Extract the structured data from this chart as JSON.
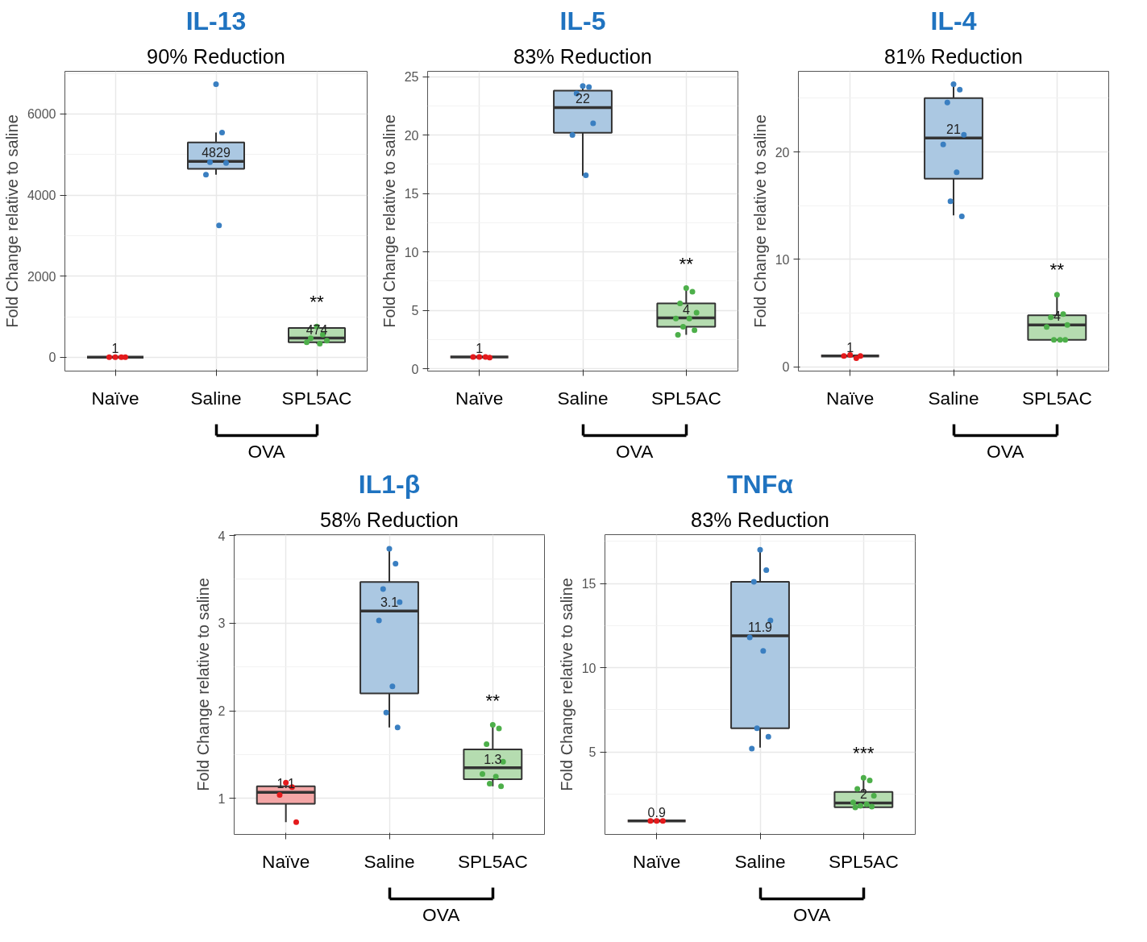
{
  "chart_data": [
    {
      "type": "box",
      "title": "IL-13",
      "subtitle": "90% Reduction",
      "ylabel": "Fold Change relative to saline",
      "categories": [
        "Naïve",
        "Saline",
        "SPL5AC"
      ],
      "ylim": [
        -340,
        7050
      ],
      "yticks": [
        0,
        2000,
        4000,
        6000
      ],
      "grid": true,
      "colors": [
        "#f4a6a6",
        "#abc8e2",
        "#b5dcb0"
      ],
      "boxes": [
        {
          "low": 1,
          "q1": 1,
          "median": 1,
          "q3": 1,
          "high": 1
        },
        {
          "low": 4500,
          "q1": 4645,
          "median": 4829,
          "q3": 5295,
          "high": 5540
        },
        {
          "low": 335,
          "q1": 372,
          "median": 474,
          "q3": 725,
          "high": 760
        }
      ],
      "series": [
        {
          "type": "scatter",
          "color": "#e41a1c",
          "x": [
            "Naïve",
            "Naïve",
            "Naïve",
            "Naïve"
          ],
          "values": [
            1,
            1,
            1,
            1
          ]
        },
        {
          "type": "scatter",
          "color": "#3a7fc1",
          "x": [
            "Saline",
            "Saline",
            "Saline",
            "Saline",
            "Saline",
            "Saline"
          ],
          "values": [
            6730,
            5540,
            4810,
            4790,
            4500,
            3250
          ]
        },
        {
          "type": "scatter",
          "color": "#4daf4a",
          "x": [
            "SPL5AC",
            "SPL5AC",
            "SPL5AC",
            "SPL5AC",
            "SPL5AC",
            "SPL5AC"
          ],
          "values": [
            760,
            560,
            470,
            410,
            370,
            335
          ]
        }
      ],
      "annotations": [
        {
          "text": "1",
          "x": "Naïve",
          "y": 1
        },
        {
          "text": "4829",
          "x": "Saline",
          "y": 4829
        },
        {
          "text": "474",
          "x": "SPL5AC",
          "y": 474
        },
        {
          "text": "**",
          "x": "SPL5AC",
          "y": 760
        },
        "OVA"
      ]
    },
    {
      "type": "box",
      "title": "IL-5",
      "subtitle": "83% Reduction",
      "ylabel": "Fold Change relative to saline",
      "categories": [
        "Naïve",
        "Saline",
        "SPL5AC"
      ],
      "ylim": [
        -0.2,
        25.45
      ],
      "yticks": [
        0,
        5,
        10,
        15,
        20,
        25
      ],
      "grid": true,
      "colors": [
        "#f4a6a6",
        "#abc8e2",
        "#b5dcb0"
      ],
      "boxes": [
        {
          "low": 1,
          "q1": 1,
          "median": 1,
          "q3": 1,
          "high": 1
        },
        {
          "low": 16.5,
          "q1": 20.2,
          "median": 22.35,
          "q3": 23.8,
          "high": 24.2
        },
        {
          "low": 2.9,
          "q1": 3.6,
          "median": 4.35,
          "q3": 5.6,
          "high": 6.9
        }
      ],
      "series": [
        {
          "type": "scatter",
          "color": "#e41a1c",
          "x": [
            "Naïve",
            "Naïve",
            "Naïve",
            "Naïve"
          ],
          "values": [
            1,
            1,
            1,
            0.95
          ]
        },
        {
          "type": "scatter",
          "color": "#3a7fc1",
          "x": [
            "Saline",
            "Saline",
            "Saline",
            "Saline",
            "Saline",
            "Saline"
          ],
          "values": [
            24.2,
            24.1,
            23.55,
            21,
            20,
            16.55
          ]
        },
        {
          "type": "scatter",
          "color": "#4daf4a",
          "x": [
            "SPL5AC",
            "SPL5AC",
            "SPL5AC",
            "SPL5AC",
            "SPL5AC",
            "SPL5AC",
            "SPL5AC",
            "SPL5AC",
            "SPL5AC"
          ],
          "values": [
            6.9,
            6.6,
            5.6,
            4.8,
            4.3,
            4.3,
            3.6,
            3.3,
            2.9
          ]
        }
      ],
      "annotations": [
        {
          "text": "1",
          "x": "Naïve",
          "y": 1
        },
        {
          "text": "22",
          "x": "Saline",
          "y": 22.35
        },
        {
          "text": "4",
          "x": "SPL5AC",
          "y": 4.35
        },
        {
          "text": "**",
          "x": "SPL5AC",
          "y": 6.9
        },
        "OVA"
      ]
    },
    {
      "type": "box",
      "title": "IL-4",
      "subtitle": "81% Reduction",
      "ylabel": "Fold Change relative to saline",
      "categories": [
        "Naïve",
        "Saline",
        "SPL5AC"
      ],
      "ylim": [
        -0.4,
        27.5
      ],
      "yticks": [
        0,
        10,
        20
      ],
      "grid": true,
      "colors": [
        "#f4a6a6",
        "#abc8e2",
        "#b5dcb0"
      ],
      "boxes": [
        {
          "low": 1,
          "q1": 1,
          "median": 1,
          "q3": 1,
          "high": 1
        },
        {
          "low": 14.1,
          "q1": 17.5,
          "median": 21.3,
          "q3": 25,
          "high": 26.3
        },
        {
          "low": 2.5,
          "q1": 2.5,
          "median": 3.9,
          "q3": 4.8,
          "high": 6.8
        }
      ],
      "series": [
        {
          "type": "scatter",
          "color": "#e41a1c",
          "x": [
            "Naïve",
            "Naïve",
            "Naïve",
            "Naïve"
          ],
          "values": [
            1.1,
            0.8,
            1,
            1
          ]
        },
        {
          "type": "scatter",
          "color": "#3a7fc1",
          "x": [
            "Saline",
            "Saline",
            "Saline",
            "Saline",
            "Saline",
            "Saline",
            "Saline",
            "Saline"
          ],
          "values": [
            26.3,
            25.8,
            24.6,
            21.6,
            20.7,
            18.1,
            15.4,
            14
          ]
        },
        {
          "type": "scatter",
          "color": "#4daf4a",
          "x": [
            "SPL5AC",
            "SPL5AC",
            "SPL5AC",
            "SPL5AC",
            "SPL5AC",
            "SPL5AC",
            "SPL5AC",
            "SPL5AC"
          ],
          "values": [
            6.7,
            4.9,
            4.6,
            3.9,
            3.7,
            2.5,
            2.5,
            2.5
          ]
        }
      ],
      "annotations": [
        {
          "text": "1",
          "x": "Naïve",
          "y": 1
        },
        {
          "text": "21",
          "x": "Saline",
          "y": 21.3
        },
        {
          "text": "4",
          "x": "SPL5AC",
          "y": 3.9
        },
        {
          "text": "**",
          "x": "SPL5AC",
          "y": 6.8
        },
        "OVA"
      ]
    },
    {
      "type": "box",
      "title": "IL1-β",
      "subtitle": "58% Reduction",
      "ylabel": "Fold Change relative to saline",
      "categories": [
        "Naïve",
        "Saline",
        "SPL5AC"
      ],
      "ylim": [
        0.59,
        4.01
      ],
      "yticks": [
        1,
        2,
        3,
        4
      ],
      "grid": true,
      "colors": [
        "#f4a6a6",
        "#abc8e2",
        "#b5dcb0"
      ],
      "boxes": [
        {
          "low": 0.73,
          "q1": 0.94,
          "median": 1.07,
          "q3": 1.14,
          "high": 1.18
        },
        {
          "low": 1.81,
          "q1": 2.2,
          "median": 3.14,
          "q3": 3.47,
          "high": 3.85
        },
        {
          "low": 1.14,
          "q1": 1.22,
          "median": 1.35,
          "q3": 1.56,
          "high": 1.84
        }
      ],
      "series": [
        {
          "type": "scatter",
          "color": "#e41a1c",
          "x": [
            "Naïve",
            "Naïve",
            "Naïve",
            "Naïve"
          ],
          "values": [
            1.18,
            1.13,
            1.04,
            0.73
          ]
        },
        {
          "type": "scatter",
          "color": "#3a7fc1",
          "x": [
            "Saline",
            "Saline",
            "Saline",
            "Saline",
            "Saline",
            "Saline",
            "Saline",
            "Saline"
          ],
          "values": [
            3.85,
            3.68,
            3.39,
            3.24,
            3.03,
            2.28,
            1.98,
            1.81
          ]
        },
        {
          "type": "scatter",
          "color": "#4daf4a",
          "x": [
            "SPL5AC",
            "SPL5AC",
            "SPL5AC",
            "SPL5AC",
            "SPL5AC",
            "SPL5AC",
            "SPL5AC",
            "SPL5AC"
          ],
          "values": [
            1.84,
            1.8,
            1.62,
            1.42,
            1.28,
            1.25,
            1.17,
            1.14
          ]
        }
      ],
      "annotations": [
        {
          "text": "1.1",
          "x": "Naïve",
          "y": 1.07
        },
        {
          "text": "3.1",
          "x": "Saline",
          "y": 3.14
        },
        {
          "text": "1.3",
          "x": "SPL5AC",
          "y": 1.35
        },
        {
          "text": "**",
          "x": "SPL5AC",
          "y": 1.84
        },
        "OVA"
      ]
    },
    {
      "type": "box",
      "title": "TNFα",
      "subtitle": "83% Reduction",
      "ylabel": "Fold Change relative to saline",
      "categories": [
        "Naïve",
        "Saline",
        "SPL5AC"
      ],
      "ylim": [
        0.1,
        17.9
      ],
      "yticks": [
        5,
        10,
        15
      ],
      "grid": true,
      "colors": [
        "#f4a6a6",
        "#abc8e2",
        "#b5dcb0"
      ],
      "boxes": [
        {
          "low": 0.9,
          "q1": 0.9,
          "median": 0.9,
          "q3": 0.9,
          "high": 0.9
        },
        {
          "low": 5.25,
          "q1": 6.4,
          "median": 11.9,
          "q3": 15.1,
          "high": 17.05
        },
        {
          "low": 1.7,
          "q1": 1.71,
          "median": 1.97,
          "q3": 2.63,
          "high": 3.46
        }
      ],
      "series": [
        {
          "type": "scatter",
          "color": "#e41a1c",
          "x": [
            "Naïve",
            "Naïve",
            "Naïve"
          ],
          "values": [
            0.9,
            0.9,
            0.9
          ]
        },
        {
          "type": "scatter",
          "color": "#3a7fc1",
          "x": [
            "Saline",
            "Saline",
            "Saline",
            "Saline",
            "Saline",
            "Saline",
            "Saline",
            "Saline",
            "Saline"
          ],
          "values": [
            17,
            15.8,
            15.1,
            12.8,
            11.8,
            11,
            6.4,
            5.9,
            5.2
          ]
        },
        {
          "type": "scatter",
          "color": "#4daf4a",
          "x": [
            "SPL5AC",
            "SPL5AC",
            "SPL5AC",
            "SPL5AC",
            "SPL5AC",
            "SPL5AC",
            "SPL5AC",
            "SPL5AC",
            "SPL5AC"
          ],
          "values": [
            3.46,
            3.3,
            2.8,
            2.4,
            2,
            1.9,
            1.8,
            1.75,
            1.7
          ]
        }
      ],
      "annotations": [
        {
          "text": "0.9",
          "x": "Naïve",
          "y": 0.9
        },
        {
          "text": "11.9",
          "x": "Saline",
          "y": 11.9
        },
        {
          "text": "2",
          "x": "SPL5AC",
          "y": 1.97
        },
        {
          "text": "***",
          "x": "SPL5AC",
          "y": 3.46
        },
        "OVA"
      ]
    }
  ]
}
